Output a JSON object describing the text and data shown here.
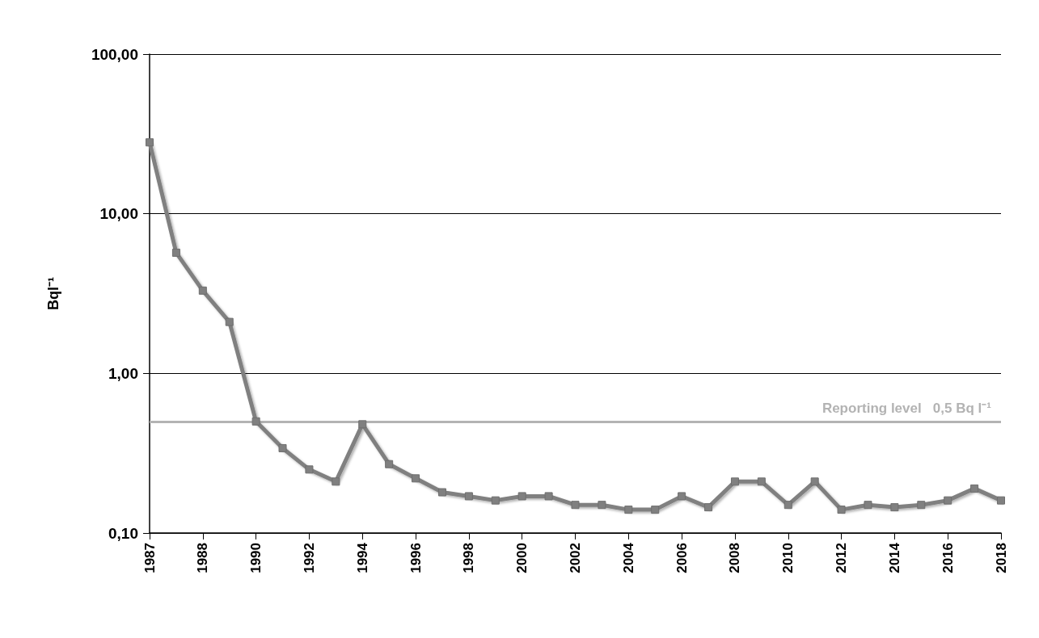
{
  "chart_data": {
    "type": "line",
    "ylabel": "Bql⁻¹",
    "categories": [
      "1987",
      null,
      "1988",
      null,
      "1990",
      null,
      "1992",
      null,
      "1994",
      null,
      "1996",
      null,
      "1998",
      null,
      "2000",
      null,
      "2002",
      null,
      "2004",
      null,
      "2006",
      null,
      "2008",
      null,
      "2010",
      null,
      "2012",
      null,
      "2014",
      null,
      "2016",
      null,
      "2018"
    ],
    "series": [
      {
        "color": "#808080",
        "values": [
          28,
          5.7,
          3.3,
          2.1,
          0.5,
          0.34,
          0.25,
          0.21,
          0.48,
          0.27,
          0.22,
          0.18,
          0.17,
          0.16,
          0.17,
          0.17,
          0.15,
          0.15,
          0.14,
          0.14,
          0.17,
          0.145,
          0.21,
          0.21,
          0.15,
          0.21,
          0.14,
          0.15,
          0.145,
          0.15,
          0.16,
          0.19,
          0.16
        ]
      }
    ],
    "log": "y",
    "ylim": [
      0.1,
      100
    ],
    "yticks": [
      {
        "value": 0.1,
        "label": "0,10"
      },
      {
        "value": 1,
        "label": "1,00"
      },
      {
        "value": 10,
        "label": "10,00"
      },
      {
        "value": 100,
        "label": "100,00"
      }
    ],
    "ref_lines": [
      {
        "axis": "y",
        "value": 0.5,
        "label": "Reporting level   0,5 Bq l⁻¹",
        "color": "#b3b3b3"
      }
    ],
    "grid": "y",
    "marker": "square",
    "line_style": "solid"
  }
}
